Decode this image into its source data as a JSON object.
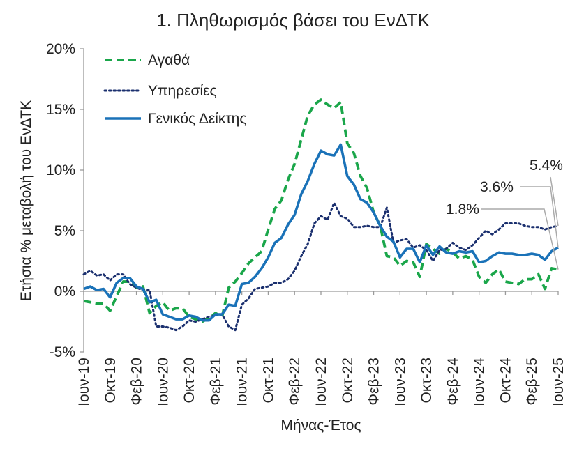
{
  "chart_data": {
    "type": "line",
    "title": "1. Πληθωρισμός βάσει του ΕνΔΤΚ",
    "xlabel": "Μήνας-Έτος",
    "ylabel": "Ετήσια % μεταβολή του ΕνΔΤΚ",
    "ylim": [
      -5,
      20
    ],
    "yticks": [
      "-5%",
      "0%",
      "5%",
      "10%",
      "15%",
      "20%"
    ],
    "grid": false,
    "legend_position": "top-left",
    "x": [
      "Ιουν-19",
      "Ιουλ-19",
      "Αυγ-19",
      "Σεπ-19",
      "Οκτ-19",
      "Νοε-19",
      "Δεκ-19",
      "Ιαν-20",
      "Φεβ-20",
      "Μαρ-20",
      "Απρ-20",
      "Μαϊ-20",
      "Ιουν-20",
      "Ιουλ-20",
      "Αυγ-20",
      "Σεπ-20",
      "Οκτ-20",
      "Νοε-20",
      "Δεκ-20",
      "Ιαν-21",
      "Φεβ-21",
      "Μαρ-21",
      "Απρ-21",
      "Μαϊ-21",
      "Ιουν-21",
      "Ιουλ-21",
      "Αυγ-21",
      "Σεπ-21",
      "Οκτ-21",
      "Νοε-21",
      "Δεκ-21",
      "Ιαν-22",
      "Φεβ-22",
      "Μαρ-22",
      "Απρ-22",
      "Μαϊ-22",
      "Ιουν-22",
      "Ιουλ-22",
      "Αυγ-22",
      "Σεπ-22",
      "Οκτ-22",
      "Νοε-22",
      "Δεκ-22",
      "Ιαν-23",
      "Φεβ-23",
      "Μαρ-23",
      "Απρ-23",
      "Μαϊ-23",
      "Ιουν-23",
      "Ιουλ-23",
      "Αυγ-23",
      "Σεπ-23",
      "Οκτ-23",
      "Νοε-23",
      "Δεκ-23",
      "Ιαν-24",
      "Φεβ-24",
      "Μαρ-24",
      "Απρ-24",
      "Μαϊ-24",
      "Ιουν-24",
      "Ιουλ-24",
      "Αυγ-24",
      "Σεπ-24",
      "Οκτ-24",
      "Νοε-24",
      "Δεκ-24",
      "Ιαν-25",
      "Φεβ-25",
      "Μαρ-25",
      "Απρ-25",
      "Μαϊ-25",
      "Ιουν-25"
    ],
    "tick_labels": [
      {
        "index": 0,
        "label": "Ιουν-19"
      },
      {
        "index": 4,
        "label": "Οκτ-19"
      },
      {
        "index": 8,
        "label": "Φεβ-20"
      },
      {
        "index": 12,
        "label": "Ιουν-20"
      },
      {
        "index": 16,
        "label": "Οκτ-20"
      },
      {
        "index": 20,
        "label": "Φεβ-21"
      },
      {
        "index": 24,
        "label": "Ιουν-21"
      },
      {
        "index": 28,
        "label": "Οκτ-21"
      },
      {
        "index": 32,
        "label": "Φεβ-22"
      },
      {
        "index": 36,
        "label": "Ιουν-22"
      },
      {
        "index": 40,
        "label": "Οκτ-22"
      },
      {
        "index": 44,
        "label": "Φεβ-23"
      },
      {
        "index": 48,
        "label": "Ιουν-23"
      },
      {
        "index": 52,
        "label": "Οκτ-23"
      },
      {
        "index": 56,
        "label": "Φεβ-24"
      },
      {
        "index": 60,
        "label": "Ιουν-24"
      },
      {
        "index": 64,
        "label": "Οκτ-24"
      },
      {
        "index": 68,
        "label": "Φεβ-25"
      },
      {
        "index": 72,
        "label": "Ιουν-25"
      }
    ],
    "series": [
      {
        "name": "Αγαθά",
        "color": "#1aa64a",
        "style": "dashed",
        "values": [
          -0.8,
          -0.9,
          -1.0,
          -1.0,
          -1.6,
          -0.4,
          0.8,
          0.8,
          0.3,
          0.4,
          -1.8,
          -1.2,
          -0.9,
          -1.6,
          -1.4,
          -1.4,
          -2.1,
          -2.3,
          -2.5,
          -2.2,
          -1.8,
          -2.1,
          0.3,
          0.8,
          1.5,
          2.3,
          2.8,
          3.3,
          5.1,
          6.8,
          7.5,
          9.2,
          10.5,
          12.5,
          14.5,
          15.4,
          15.8,
          15.4,
          15.1,
          15.6,
          12.2,
          11.4,
          9.5,
          8.5,
          6.5,
          5.4,
          2.9,
          2.8,
          2.1,
          2.5,
          2.4,
          1.2,
          3.9,
          3.5,
          3.1,
          3.5,
          3.2,
          2.7,
          2.9,
          2.6,
          1.2,
          0.7,
          1.4,
          1.8,
          0.8,
          0.7,
          0.6,
          1.0,
          1.0,
          1.4,
          0.2,
          1.9,
          1.8
        ]
      },
      {
        "name": "Υπηρεσίες",
        "color": "#1a2f6e",
        "style": "dotted",
        "values": [
          1.4,
          1.7,
          1.3,
          1.4,
          0.9,
          1.4,
          1.4,
          0.6,
          0.3,
          0.1,
          0.1,
          -2.9,
          -2.9,
          -3.0,
          -3.2,
          -2.9,
          -2.4,
          -2.5,
          -2.3,
          -2.1,
          -2.0,
          -1.9,
          -2.9,
          -3.2,
          -1.1,
          -0.6,
          0.2,
          0.3,
          0.4,
          0.7,
          0.7,
          1.0,
          1.7,
          2.9,
          3.9,
          5.6,
          6.2,
          5.9,
          7.3,
          6.2,
          6.0,
          5.3,
          5.3,
          5.4,
          5.3,
          5.3,
          6.9,
          4.0,
          4.2,
          4.3,
          3.6,
          3.8,
          3.4,
          2.5,
          3.4,
          3.5,
          4.0,
          3.6,
          3.4,
          3.8,
          4.4,
          5.0,
          4.7,
          5.1,
          5.6,
          5.6,
          5.6,
          5.4,
          5.3,
          5.3,
          5.1,
          5.3,
          5.4
        ]
      },
      {
        "name": "Γενικός Δείκτης",
        "color": "#1a72b8",
        "style": "solid",
        "values": [
          0.2,
          0.4,
          0.1,
          0.2,
          -0.5,
          0.7,
          1.1,
          1.1,
          0.4,
          0.2,
          -0.9,
          -0.7,
          -1.9,
          -2.1,
          -2.3,
          -2.3,
          -2.0,
          -2.1,
          -2.4,
          -2.4,
          -1.9,
          -1.9,
          -1.1,
          -1.2,
          0.6,
          0.7,
          1.2,
          1.9,
          2.8,
          4.0,
          4.4,
          5.5,
          6.3,
          8.0,
          9.1,
          10.5,
          11.6,
          11.3,
          11.2,
          12.1,
          9.5,
          8.8,
          7.6,
          7.3,
          6.5,
          5.4,
          4.5,
          4.1,
          2.8,
          3.5,
          3.5,
          2.4,
          3.8,
          3.0,
          3.7,
          3.2,
          3.1,
          3.3,
          3.2,
          3.3,
          2.4,
          2.5,
          2.9,
          3.2,
          3.1,
          3.1,
          3.0,
          3.0,
          3.1,
          3.0,
          2.6,
          3.3,
          3.6
        ]
      }
    ],
    "annotations": [
      {
        "text": "5.4%",
        "series": 1,
        "index": 72
      },
      {
        "text": "3.6%",
        "series": 2,
        "index": 72
      },
      {
        "text": "1.8%",
        "series": 0,
        "index": 72
      }
    ]
  }
}
